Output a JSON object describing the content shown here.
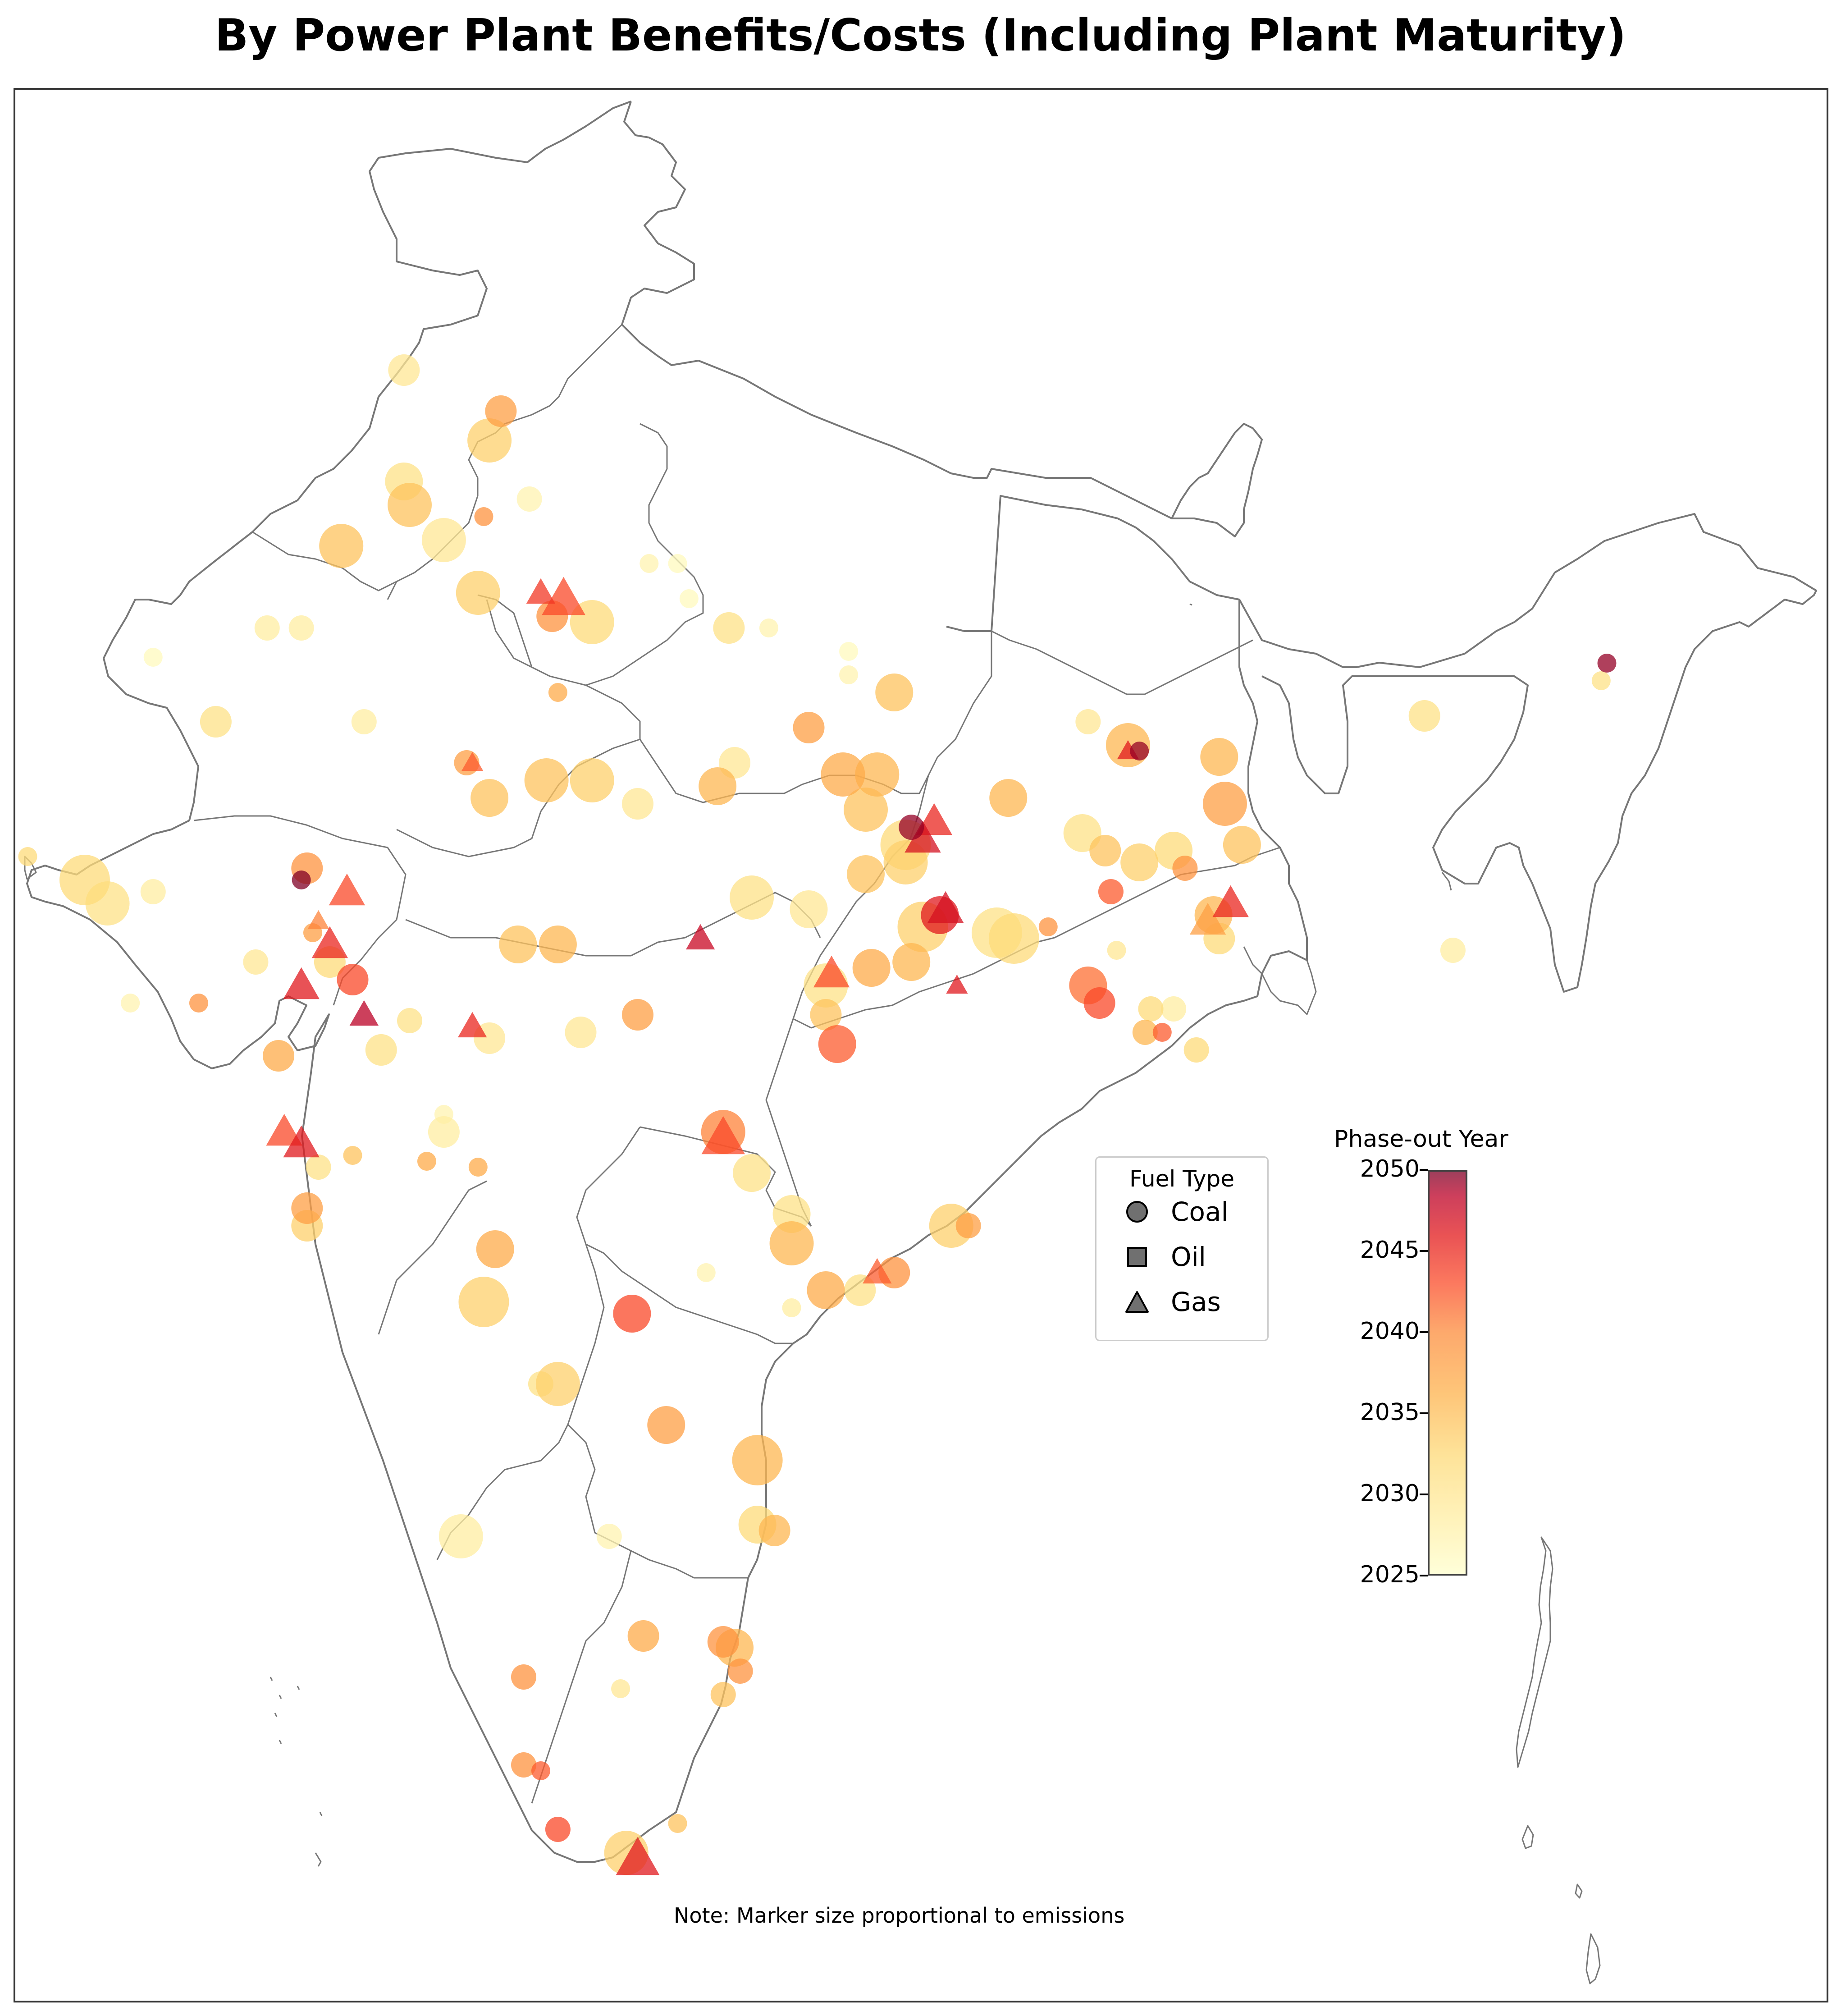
{
  "title": "By Power Plant Benefits/Costs (Including Plant Maturity)",
  "note": "Note: Marker size proportional to emissions",
  "legend": {
    "title": "Fuel Type",
    "items": [
      {
        "label": "Coal",
        "marker": "circle"
      },
      {
        "label": "Oil",
        "marker": "square"
      },
      {
        "label": "Gas",
        "marker": "triangle"
      }
    ]
  },
  "colorbar": {
    "title": "Phase-out Year",
    "min": 2025,
    "max": 2050,
    "ticks": [
      "2025",
      "2030",
      "2035",
      "2040",
      "2045",
      "2050"
    ],
    "colors": [
      "#ffffcc",
      "#ffeda0",
      "#fed976",
      "#feb24c",
      "#fd8d3c",
      "#fc4e2a",
      "#e31a1c",
      "#bd0026",
      "#800026"
    ]
  },
  "map": {
    "region": "India",
    "outline_color": "#777777"
  },
  "plants": [
    {
      "lon": 73.9,
      "lat": 32.3,
      "type": "coal",
      "year": 2029,
      "emissions": 3
    },
    {
      "lon": 75.6,
      "lat": 31.6,
      "type": "coal",
      "year": 2036,
      "emissions": 3
    },
    {
      "lon": 75.4,
      "lat": 31.1,
      "type": "coal",
      "year": 2032,
      "emissions": 5
    },
    {
      "lon": 73.9,
      "lat": 30.4,
      "type": "coal",
      "year": 2030,
      "emissions": 4
    },
    {
      "lon": 74.0,
      "lat": 30.0,
      "type": "coal",
      "year": 2033,
      "emissions": 5
    },
    {
      "lon": 76.1,
      "lat": 30.1,
      "type": "coal",
      "year": 2027,
      "emissions": 2
    },
    {
      "lon": 75.3,
      "lat": 29.8,
      "type": "coal",
      "year": 2037,
      "emissions": 1
    },
    {
      "lon": 72.8,
      "lat": 29.3,
      "type": "coal",
      "year": 2033,
      "emissions": 5
    },
    {
      "lon": 74.6,
      "lat": 29.4,
      "type": "coal",
      "year": 2029,
      "emissions": 5
    },
    {
      "lon": 75.2,
      "lat": 28.5,
      "type": "coal",
      "year": 2032,
      "emissions": 5
    },
    {
      "lon": 76.3,
      "lat": 28.5,
      "type": "gas",
      "year": 2042,
      "emissions": 2
    },
    {
      "lon": 76.7,
      "lat": 28.4,
      "type": "gas",
      "year": 2041,
      "emissions": 4
    },
    {
      "lon": 76.5,
      "lat": 28.1,
      "type": "coal",
      "year": 2037,
      "emissions": 3
    },
    {
      "lon": 77.2,
      "lat": 28.0,
      "type": "coal",
      "year": 2031,
      "emissions": 5
    },
    {
      "lon": 78.2,
      "lat": 29.0,
      "type": "coal",
      "year": 2027,
      "emissions": 1
    },
    {
      "lon": 78.7,
      "lat": 29.0,
      "type": "coal",
      "year": 2026,
      "emissions": 1
    },
    {
      "lon": 78.9,
      "lat": 28.4,
      "type": "coal",
      "year": 2026,
      "emissions": 1
    },
    {
      "lon": 79.6,
      "lat": 27.9,
      "type": "coal",
      "year": 2030,
      "emissions": 3
    },
    {
      "lon": 80.3,
      "lat": 27.9,
      "type": "coal",
      "year": 2027,
      "emissions": 1
    },
    {
      "lon": 71.5,
      "lat": 27.9,
      "type": "coal",
      "year": 2028,
      "emissions": 2
    },
    {
      "lon": 72.1,
      "lat": 27.9,
      "type": "coal",
      "year": 2028,
      "emissions": 2
    },
    {
      "lon": 69.5,
      "lat": 27.4,
      "type": "coal",
      "year": 2026,
      "emissions": 1
    },
    {
      "lon": 81.7,
      "lat": 27.5,
      "type": "coal",
      "year": 2026,
      "emissions": 1
    },
    {
      "lon": 81.7,
      "lat": 27.1,
      "type": "coal",
      "year": 2027,
      "emissions": 1
    },
    {
      "lon": 82.5,
      "lat": 26.8,
      "type": "coal",
      "year": 2033,
      "emissions": 4
    },
    {
      "lon": 76.6,
      "lat": 26.8,
      "type": "coal",
      "year": 2035,
      "emissions": 1
    },
    {
      "lon": 70.6,
      "lat": 26.3,
      "type": "coal",
      "year": 2030,
      "emissions": 3
    },
    {
      "lon": 73.2,
      "lat": 26.3,
      "type": "coal",
      "year": 2028,
      "emissions": 2
    },
    {
      "lon": 81.0,
      "lat": 26.2,
      "type": "coal",
      "year": 2036,
      "emissions": 3
    },
    {
      "lon": 85.9,
      "lat": 26.3,
      "type": "coal",
      "year": 2029,
      "emissions": 2
    },
    {
      "lon": 86.6,
      "lat": 25.9,
      "type": "coal",
      "year": 2034,
      "emissions": 5
    },
    {
      "lon": 86.8,
      "lat": 25.8,
      "type": "coal",
      "year": 2049,
      "emissions": 1
    },
    {
      "lon": 86.6,
      "lat": 25.8,
      "type": "gas",
      "year": 2044,
      "emissions": 1
    },
    {
      "lon": 88.2,
      "lat": 25.7,
      "type": "coal",
      "year": 2034,
      "emissions": 4
    },
    {
      "lon": 91.8,
      "lat": 26.4,
      "type": "coal",
      "year": 2030,
      "emissions": 3
    },
    {
      "lon": 95.0,
      "lat": 27.3,
      "type": "coal",
      "year": 2049,
      "emissions": 1
    },
    {
      "lon": 75.0,
      "lat": 25.6,
      "type": "coal",
      "year": 2036,
      "emissions": 2
    },
    {
      "lon": 75.1,
      "lat": 25.6,
      "type": "gas",
      "year": 2040,
      "emissions": 1
    },
    {
      "lon": 77.2,
      "lat": 25.3,
      "type": "coal",
      "year": 2032,
      "emissions": 5
    },
    {
      "lon": 76.4,
      "lat": 25.3,
      "type": "coal",
      "year": 2033,
      "emissions": 5
    },
    {
      "lon": 75.4,
      "lat": 25.0,
      "type": "coal",
      "year": 2033,
      "emissions": 4
    },
    {
      "lon": 79.7,
      "lat": 25.6,
      "type": "coal",
      "year": 2029,
      "emissions": 3
    },
    {
      "lon": 79.4,
      "lat": 25.2,
      "type": "coal",
      "year": 2034,
      "emissions": 4
    },
    {
      "lon": 78.0,
      "lat": 24.9,
      "type": "coal",
      "year": 2029,
      "emissions": 3
    },
    {
      "lon": 81.6,
      "lat": 25.4,
      "type": "coal",
      "year": 2035,
      "emissions": 5
    },
    {
      "lon": 82.2,
      "lat": 25.4,
      "type": "coal",
      "year": 2034,
      "emissions": 5
    },
    {
      "lon": 82.0,
      "lat": 24.8,
      "type": "coal",
      "year": 2033,
      "emissions": 5
    },
    {
      "lon": 82.7,
      "lat": 24.2,
      "type": "coal",
      "year": 2031,
      "emissions": 6
    },
    {
      "lon": 83.0,
      "lat": 24.3,
      "type": "gas",
      "year": 2045,
      "emissions": 3
    },
    {
      "lon": 83.2,
      "lat": 24.6,
      "type": "gas",
      "year": 2043,
      "emissions": 3
    },
    {
      "lon": 82.8,
      "lat": 24.5,
      "type": "coal",
      "year": 2049,
      "emissions": 2
    },
    {
      "lon": 82.7,
      "lat": 23.9,
      "type": "coal",
      "year": 2032,
      "emissions": 5
    },
    {
      "lon": 84.5,
      "lat": 25.0,
      "type": "coal",
      "year": 2034,
      "emissions": 4
    },
    {
      "lon": 85.8,
      "lat": 24.4,
      "type": "coal",
      "year": 2030,
      "emissions": 4
    },
    {
      "lon": 86.2,
      "lat": 24.1,
      "type": "coal",
      "year": 2033,
      "emissions": 3
    },
    {
      "lon": 86.8,
      "lat": 23.9,
      "type": "coal",
      "year": 2032,
      "emissions": 4
    },
    {
      "lon": 87.4,
      "lat": 24.1,
      "type": "coal",
      "year": 2031,
      "emissions": 4
    },
    {
      "lon": 87.6,
      "lat": 23.8,
      "type": "coal",
      "year": 2037,
      "emissions": 2
    },
    {
      "lon": 88.3,
      "lat": 24.9,
      "type": "coal",
      "year": 2036,
      "emissions": 5
    },
    {
      "lon": 88.6,
      "lat": 24.2,
      "type": "coal",
      "year": 2033,
      "emissions": 4
    },
    {
      "lon": 86.3,
      "lat": 23.4,
      "type": "coal",
      "year": 2040,
      "emissions": 2
    },
    {
      "lon": 88.0,
      "lat": 22.9,
      "type": "gas",
      "year": 2036,
      "emissions": 3
    },
    {
      "lon": 88.1,
      "lat": 23.0,
      "type": "coal",
      "year": 2034,
      "emissions": 4
    },
    {
      "lon": 88.4,
      "lat": 23.2,
      "type": "gas",
      "year": 2043,
      "emissions": 3
    },
    {
      "lon": 88.2,
      "lat": 22.6,
      "type": "coal",
      "year": 2031,
      "emissions": 3
    },
    {
      "lon": 68.3,
      "lat": 23.6,
      "type": "coal",
      "year": 2031,
      "emissions": 6
    },
    {
      "lon": 68.7,
      "lat": 23.2,
      "type": "coal",
      "year": 2030,
      "emissions": 5
    },
    {
      "lon": 69.5,
      "lat": 23.4,
      "type": "coal",
      "year": 2028,
      "emissions": 2
    },
    {
      "lon": 72.2,
      "lat": 23.8,
      "type": "coal",
      "year": 2037,
      "emissions": 3
    },
    {
      "lon": 72.1,
      "lat": 23.6,
      "type": "coal",
      "year": 2050,
      "emissions": 1
    },
    {
      "lon": 72.9,
      "lat": 23.4,
      "type": "gas",
      "year": 2041,
      "emissions": 3
    },
    {
      "lon": 72.4,
      "lat": 22.9,
      "type": "gas",
      "year": 2038,
      "emissions": 1
    },
    {
      "lon": 72.3,
      "lat": 22.7,
      "type": "coal",
      "year": 2036,
      "emissions": 1
    },
    {
      "lon": 72.6,
      "lat": 22.5,
      "type": "gas",
      "year": 2043,
      "emissions": 3
    },
    {
      "lon": 72.6,
      "lat": 22.2,
      "type": "coal",
      "year": 2031,
      "emissions": 3
    },
    {
      "lon": 71.3,
      "lat": 22.2,
      "type": "coal",
      "year": 2029,
      "emissions": 2
    },
    {
      "lon": 72.1,
      "lat": 21.8,
      "type": "gas",
      "year": 2044,
      "emissions": 3
    },
    {
      "lon": 73.0,
      "lat": 21.9,
      "type": "coal",
      "year": 2041,
      "emissions": 3
    },
    {
      "lon": 70.3,
      "lat": 21.5,
      "type": "coal",
      "year": 2037,
      "emissions": 1
    },
    {
      "lon": 69.1,
      "lat": 21.5,
      "type": "coal",
      "year": 2027,
      "emissions": 1
    },
    {
      "lon": 67.3,
      "lat": 24.0,
      "type": "coal",
      "year": 2031,
      "emissions": 1
    },
    {
      "lon": 75.9,
      "lat": 22.5,
      "type": "coal",
      "year": 2033,
      "emissions": 4
    },
    {
      "lon": 76.6,
      "lat": 22.5,
      "type": "coal",
      "year": 2034,
      "emissions": 4
    },
    {
      "lon": 79.1,
      "lat": 22.6,
      "type": "gas",
      "year": 2046,
      "emissions": 2
    },
    {
      "lon": 80.0,
      "lat": 23.3,
      "type": "coal",
      "year": 2030,
      "emissions": 5
    },
    {
      "lon": 81.0,
      "lat": 23.1,
      "type": "coal",
      "year": 2029,
      "emissions": 4
    },
    {
      "lon": 82.0,
      "lat": 23.7,
      "type": "coal",
      "year": 2033,
      "emissions": 4
    },
    {
      "lon": 81.4,
      "lat": 22.0,
      "type": "gas",
      "year": 2041,
      "emissions": 3
    },
    {
      "lon": 81.3,
      "lat": 21.8,
      "type": "coal",
      "year": 2030,
      "emissions": 5
    },
    {
      "lon": 82.1,
      "lat": 22.1,
      "type": "coal",
      "year": 2035,
      "emissions": 4
    },
    {
      "lon": 81.3,
      "lat": 21.3,
      "type": "coal",
      "year": 2033,
      "emissions": 3
    },
    {
      "lon": 81.5,
      "lat": 20.8,
      "type": "coal",
      "year": 2040,
      "emissions": 4
    },
    {
      "lon": 83.3,
      "lat": 23.0,
      "type": "coal",
      "year": 2044,
      "emissions": 4
    },
    {
      "lon": 83.4,
      "lat": 23.1,
      "type": "gas",
      "year": 2045,
      "emissions": 3
    },
    {
      "lon": 83.0,
      "lat": 22.8,
      "type": "coal",
      "year": 2032,
      "emissions": 6
    },
    {
      "lon": 84.3,
      "lat": 22.7,
      "type": "coal",
      "year": 2030,
      "emissions": 6
    },
    {
      "lon": 84.6,
      "lat": 22.6,
      "type": "coal",
      "year": 2031,
      "emissions": 6
    },
    {
      "lon": 82.8,
      "lat": 22.2,
      "type": "coal",
      "year": 2034,
      "emissions": 4
    },
    {
      "lon": 83.6,
      "lat": 21.8,
      "type": "gas",
      "year": 2044,
      "emissions": 1
    },
    {
      "lon": 85.2,
      "lat": 22.8,
      "type": "coal",
      "year": 2037,
      "emissions": 1
    },
    {
      "lon": 85.9,
      "lat": 21.8,
      "type": "coal",
      "year": 2039,
      "emissions": 4
    },
    {
      "lon": 86.1,
      "lat": 21.5,
      "type": "coal",
      "year": 2041,
      "emissions": 3
    },
    {
      "lon": 86.4,
      "lat": 22.4,
      "type": "coal",
      "year": 2029,
      "emissions": 1
    },
    {
      "lon": 87.0,
      "lat": 21.4,
      "type": "coal",
      "year": 2031,
      "emissions": 2
    },
    {
      "lon": 87.4,
      "lat": 21.4,
      "type": "coal",
      "year": 2028,
      "emissions": 2
    },
    {
      "lon": 86.9,
      "lat": 21.0,
      "type": "coal",
      "year": 2034,
      "emissions": 2
    },
    {
      "lon": 87.2,
      "lat": 21.0,
      "type": "coal",
      "year": 2040,
      "emissions": 1
    },
    {
      "lon": 87.8,
      "lat": 20.7,
      "type": "coal",
      "year": 2031,
      "emissions": 2
    },
    {
      "lon": 73.2,
      "lat": 21.3,
      "type": "gas",
      "year": 2047,
      "emissions": 2
    },
    {
      "lon": 73.5,
      "lat": 20.7,
      "type": "coal",
      "year": 2030,
      "emissions": 3
    },
    {
      "lon": 71.7,
      "lat": 20.6,
      "type": "coal",
      "year": 2035,
      "emissions": 3
    },
    {
      "lon": 71.8,
      "lat": 19.3,
      "type": "gas",
      "year": 2041,
      "emissions": 3
    },
    {
      "lon": 72.1,
      "lat": 19.1,
      "type": "gas",
      "year": 2044,
      "emissions": 3
    },
    {
      "lon": 72.2,
      "lat": 18.0,
      "type": "coal",
      "year": 2036,
      "emissions": 3
    },
    {
      "lon": 72.2,
      "lat": 17.7,
      "type": "coal",
      "year": 2032,
      "emissions": 3
    },
    {
      "lon": 72.4,
      "lat": 18.7,
      "type": "coal",
      "year": 2030,
      "emissions": 2
    },
    {
      "lon": 73.0,
      "lat": 18.9,
      "type": "coal",
      "year": 2033,
      "emissions": 1
    },
    {
      "lon": 74.6,
      "lat": 19.3,
      "type": "coal",
      "year": 2028,
      "emissions": 3
    },
    {
      "lon": 74.6,
      "lat": 19.6,
      "type": "coal",
      "year": 2027,
      "emissions": 1
    },
    {
      "lon": 74.0,
      "lat": 21.2,
      "type": "coal",
      "year": 2030,
      "emissions": 2
    },
    {
      "lon": 75.1,
      "lat": 21.1,
      "type": "gas",
      "year": 2043,
      "emissions": 2
    },
    {
      "lon": 75.4,
      "lat": 20.9,
      "type": "coal",
      "year": 2029,
      "emissions": 3
    },
    {
      "lon": 77.0,
      "lat": 21.0,
      "type": "coal",
      "year": 2029,
      "emissions": 3
    },
    {
      "lon": 78.0,
      "lat": 21.3,
      "type": "coal",
      "year": 2036,
      "emissions": 3
    },
    {
      "lon": 74.3,
      "lat": 18.8,
      "type": "coal",
      "year": 2035,
      "emissions": 1
    },
    {
      "lon": 75.2,
      "lat": 18.7,
      "type": "coal",
      "year": 2035,
      "emissions": 1
    },
    {
      "lon": 79.5,
      "lat": 19.3,
      "type": "coal",
      "year": 2038,
      "emissions": 5
    },
    {
      "lon": 79.5,
      "lat": 19.2,
      "type": "gas",
      "year": 2041,
      "emissions": 4
    },
    {
      "lon": 80.0,
      "lat": 18.6,
      "type": "coal",
      "year": 2030,
      "emissions": 4
    },
    {
      "lon": 80.7,
      "lat": 17.9,
      "type": "coal",
      "year": 2030,
      "emissions": 4
    },
    {
      "lon": 80.7,
      "lat": 17.4,
      "type": "coal",
      "year": 2034,
      "emissions": 5
    },
    {
      "lon": 83.5,
      "lat": 17.7,
      "type": "coal",
      "year": 2032,
      "emissions": 5
    },
    {
      "lon": 83.8,
      "lat": 17.7,
      "type": "coal",
      "year": 2036,
      "emissions": 2
    },
    {
      "lon": 82.2,
      "lat": 16.9,
      "type": "gas",
      "year": 2040,
      "emissions": 2
    },
    {
      "lon": 82.5,
      "lat": 16.9,
      "type": "coal",
      "year": 2037,
      "emissions": 3
    },
    {
      "lon": 81.9,
      "lat": 16.6,
      "type": "coal",
      "year": 2030,
      "emissions": 3
    },
    {
      "lon": 81.3,
      "lat": 16.6,
      "type": "coal",
      "year": 2035,
      "emissions": 4
    },
    {
      "lon": 80.7,
      "lat": 16.3,
      "type": "coal",
      "year": 2028,
      "emissions": 1
    },
    {
      "lon": 79.2,
      "lat": 16.9,
      "type": "coal",
      "year": 2027,
      "emissions": 1
    },
    {
      "lon": 75.5,
      "lat": 17.3,
      "type": "coal",
      "year": 2035,
      "emissions": 4
    },
    {
      "lon": 75.3,
      "lat": 16.4,
      "type": "coal",
      "year": 2032,
      "emissions": 6
    },
    {
      "lon": 77.9,
      "lat": 16.2,
      "type": "coal",
      "year": 2041,
      "emissions": 4
    },
    {
      "lon": 76.6,
      "lat": 15.0,
      "type": "coal",
      "year": 2032,
      "emissions": 5
    },
    {
      "lon": 76.3,
      "lat": 15.0,
      "type": "coal",
      "year": 2030,
      "emissions": 2
    },
    {
      "lon": 78.5,
      "lat": 14.3,
      "type": "coal",
      "year": 2036,
      "emissions": 4
    },
    {
      "lon": 80.1,
      "lat": 13.7,
      "type": "coal",
      "year": 2034,
      "emissions": 6
    },
    {
      "lon": 80.1,
      "lat": 12.6,
      "type": "coal",
      "year": 2031,
      "emissions": 4
    },
    {
      "lon": 80.4,
      "lat": 12.5,
      "type": "coal",
      "year": 2034,
      "emissions": 3
    },
    {
      "lon": 74.9,
      "lat": 12.4,
      "type": "coal",
      "year": 2028,
      "emissions": 5
    },
    {
      "lon": 77.5,
      "lat": 12.4,
      "type": "coal",
      "year": 2027,
      "emissions": 2
    },
    {
      "lon": 78.1,
      "lat": 10.7,
      "type": "coal",
      "year": 2035,
      "emissions": 3
    },
    {
      "lon": 79.5,
      "lat": 10.6,
      "type": "coal",
      "year": 2037,
      "emissions": 3
    },
    {
      "lon": 79.7,
      "lat": 10.5,
      "type": "coal",
      "year": 2034,
      "emissions": 4
    },
    {
      "lon": 79.8,
      "lat": 10.1,
      "type": "coal",
      "year": 2037,
      "emissions": 2
    },
    {
      "lon": 79.5,
      "lat": 9.7,
      "type": "coal",
      "year": 2033,
      "emissions": 2
    },
    {
      "lon": 76.0,
      "lat": 10.0,
      "type": "coal",
      "year": 2037,
      "emissions": 2
    },
    {
      "lon": 77.7,
      "lat": 9.8,
      "type": "coal",
      "year": 2029,
      "emissions": 1
    },
    {
      "lon": 76.0,
      "lat": 8.5,
      "type": "coal",
      "year": 2037,
      "emissions": 2
    },
    {
      "lon": 76.3,
      "lat": 8.4,
      "type": "coal",
      "year": 2040,
      "emissions": 1
    },
    {
      "lon": 76.6,
      "lat": 7.4,
      "type": "coal",
      "year": 2041,
      "emissions": 2
    },
    {
      "lon": 77.8,
      "lat": 7.0,
      "type": "coal",
      "year": 2032,
      "emissions": 5
    },
    {
      "lon": 78.0,
      "lat": 6.9,
      "type": "gas",
      "year": 2044,
      "emissions": 4
    },
    {
      "lon": 78.7,
      "lat": 7.5,
      "type": "coal",
      "year": 2033,
      "emissions": 1
    },
    {
      "lon": 92.3,
      "lat": 22.4,
      "type": "coal",
      "year": 2028,
      "emissions": 2
    },
    {
      "lon": 94.9,
      "lat": 27.0,
      "type": "coal",
      "year": 2030,
      "emissions": 1
    }
  ]
}
